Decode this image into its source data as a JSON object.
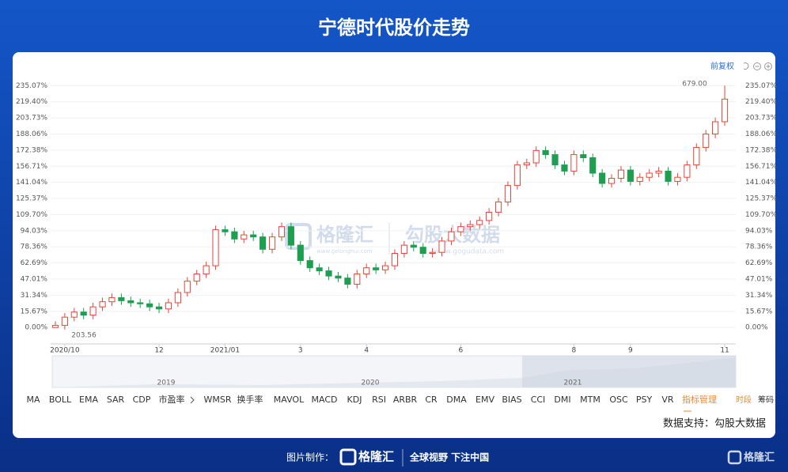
{
  "header": {
    "title": "宁德时代股价走势"
  },
  "chart_data": {
    "type": "candlestick",
    "adjust": "前复权",
    "categories": [
      null,
      "2020/10",
      null,
      null,
      null,
      null,
      null,
      null,
      null,
      null,
      null,
      "12",
      null,
      null,
      null,
      null,
      null,
      null,
      "2021/01",
      null,
      null,
      null,
      null,
      null,
      null,
      null,
      "3",
      null,
      null,
      null,
      null,
      null,
      null,
      "4",
      null,
      null,
      null,
      null,
      null,
      null,
      null,
      null,
      null,
      "6",
      null,
      null,
      null,
      null,
      null,
      null,
      null,
      null,
      null,
      null,
      null,
      "8",
      null,
      null,
      null,
      null,
      null,
      "9",
      null,
      null,
      null,
      null,
      null,
      null,
      null,
      null,
      null,
      "11"
    ],
    "open": [
      0,
      2,
      10,
      15,
      12,
      20,
      25,
      29,
      26,
      24,
      23,
      20,
      18,
      24,
      34,
      45,
      52,
      60,
      95,
      93,
      86,
      90,
      88,
      76,
      88,
      98,
      80,
      65,
      58,
      55,
      50,
      48,
      42,
      52,
      58,
      56,
      60,
      72,
      80,
      78,
      72,
      73,
      84,
      93,
      98,
      100,
      104,
      112,
      122,
      138,
      158,
      160,
      172,
      168,
      158,
      152,
      168,
      165,
      150,
      140,
      145,
      153,
      142,
      146,
      150,
      152,
      142,
      146,
      158,
      175,
      188,
      200
    ],
    "high": [
      6,
      14,
      19,
      19,
      24,
      29,
      33,
      33,
      30,
      28,
      27,
      24,
      28,
      38,
      49,
      56,
      64,
      99,
      99,
      97,
      94,
      94,
      92,
      92,
      102,
      102,
      84,
      69,
      62,
      59,
      54,
      52,
      56,
      62,
      62,
      64,
      76,
      84,
      84,
      82,
      77,
      88,
      97,
      102,
      104,
      108,
      116,
      126,
      142,
      162,
      164,
      176,
      176,
      172,
      162,
      172,
      172,
      169,
      154,
      149,
      157,
      157,
      150,
      154,
      156,
      156,
      150,
      162,
      179,
      192,
      204,
      235.07
    ],
    "low": [
      0,
      -2,
      6,
      8,
      8,
      16,
      21,
      22,
      20,
      19,
      16,
      14,
      14,
      20,
      30,
      41,
      48,
      56,
      89,
      82,
      82,
      84,
      72,
      72,
      84,
      76,
      61,
      54,
      51,
      46,
      44,
      38,
      38,
      48,
      52,
      52,
      56,
      68,
      74,
      68,
      68,
      69,
      80,
      89,
      94,
      96,
      100,
      108,
      118,
      134,
      154,
      156,
      164,
      154,
      148,
      148,
      161,
      146,
      136,
      136,
      141,
      138,
      138,
      142,
      146,
      138,
      138,
      142,
      154,
      171,
      184,
      196
    ],
    "close": [
      2,
      10,
      15,
      12,
      20,
      25,
      29,
      26,
      24,
      23,
      20,
      18,
      24,
      34,
      45,
      52,
      60,
      95,
      93,
      86,
      90,
      88,
      76,
      88,
      98,
      80,
      65,
      58,
      55,
      50,
      48,
      42,
      52,
      58,
      56,
      60,
      72,
      80,
      78,
      72,
      73,
      84,
      93,
      98,
      100,
      104,
      112,
      122,
      138,
      158,
      160,
      172,
      168,
      158,
      152,
      168,
      165,
      150,
      140,
      145,
      153,
      142,
      146,
      150,
      152,
      142,
      146,
      158,
      175,
      188,
      200,
      222
    ],
    "up_color": "#e5463b",
    "down_color": "#1e9e50",
    "ylim": [
      -16,
      243
    ],
    "yticks": [
      {
        "value": 0,
        "label": "0.00%"
      },
      {
        "value": 15.67,
        "label": "15.67%"
      },
      {
        "value": 31.34,
        "label": "31.34%"
      },
      {
        "value": 47.01,
        "label": "47.01%"
      },
      {
        "value": 62.69,
        "label": "62.69%"
      },
      {
        "value": 78.36,
        "label": "78.36%"
      },
      {
        "value": 94.03,
        "label": "94.03%"
      },
      {
        "value": 109.7,
        "label": "109.70%"
      },
      {
        "value": 125.37,
        "label": "125.37%"
      },
      {
        "value": 141.04,
        "label": "141.04%"
      },
      {
        "value": 156.71,
        "label": "156.71%"
      },
      {
        "value": 172.38,
        "label": "172.38%"
      },
      {
        "value": 188.06,
        "label": "188.06%"
      },
      {
        "value": 203.73,
        "label": "203.73%"
      },
      {
        "value": 219.4,
        "label": "219.40%"
      },
      {
        "value": 235.07,
        "label": "235.07%"
      }
    ],
    "grid": true,
    "annotations": [
      "679.00",
      "203.56"
    ]
  },
  "navigator": {
    "labels": [
      "2019",
      "2020",
      "2021"
    ]
  },
  "indicators": [
    "MA",
    "BOLL",
    "EMA",
    "SAR",
    "CDP",
    "市盈率",
    "WMSR",
    "换手率",
    "MAVOL",
    "MACD",
    "KDJ",
    "RSI",
    "ARBR",
    "CR",
    "DMA",
    "EMV",
    "BIAS",
    "CCI",
    "DMI",
    "MTM",
    "OSC",
    "PSY",
    "VR",
    "指标管理",
    "时段",
    "筹码"
  ],
  "source": "数据支持：勾股大数据",
  "watermark": {
    "left": "格隆汇",
    "left_url": "www.gelonghui.com",
    "right": "勾股大数据",
    "right_url": "www.gogudata.com"
  },
  "footer": {
    "made_by": "图片制作：",
    "brand": "格隆汇",
    "slogan": "全球视野 下注中国",
    "corner": "格隆汇"
  }
}
